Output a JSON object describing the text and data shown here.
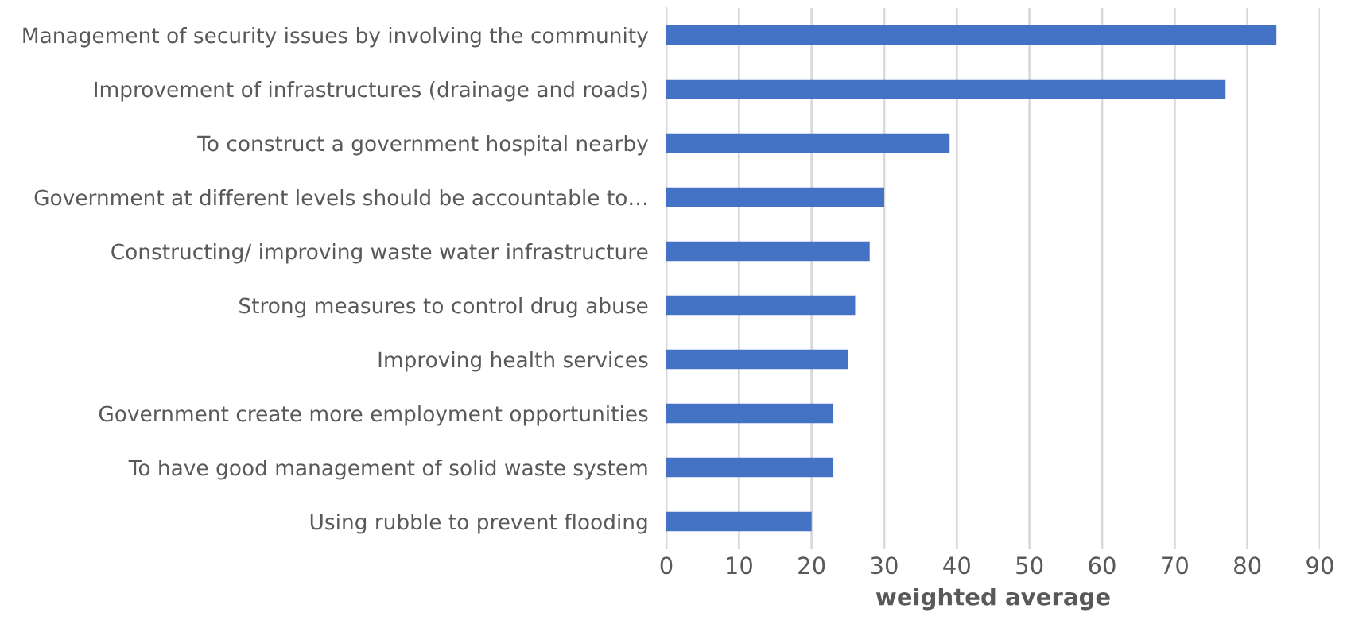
{
  "chart_data": {
    "type": "bar",
    "orientation": "horizontal",
    "xlabel": "weighted average",
    "categories": [
      "Management of security issues by involving the community",
      "Improvement of infrastructures (drainage and roads)",
      "To construct a government hospital nearby",
      "Government at different levels should be accountable to…",
      "Constructing/ improving waste water infrastructure",
      "Strong measures to control drug abuse",
      "Improving health services",
      "Government create more employment opportunities",
      "To have good management of solid waste system",
      "Using rubble to prevent flooding"
    ],
    "values": [
      84,
      77,
      39,
      30,
      28,
      26,
      25,
      23,
      23,
      20
    ],
    "color": "#4472c4",
    "xlim": [
      0,
      90
    ],
    "xticks": [
      0,
      10,
      20,
      30,
      40,
      50,
      60,
      70,
      80,
      90
    ],
    "grid": "x"
  }
}
